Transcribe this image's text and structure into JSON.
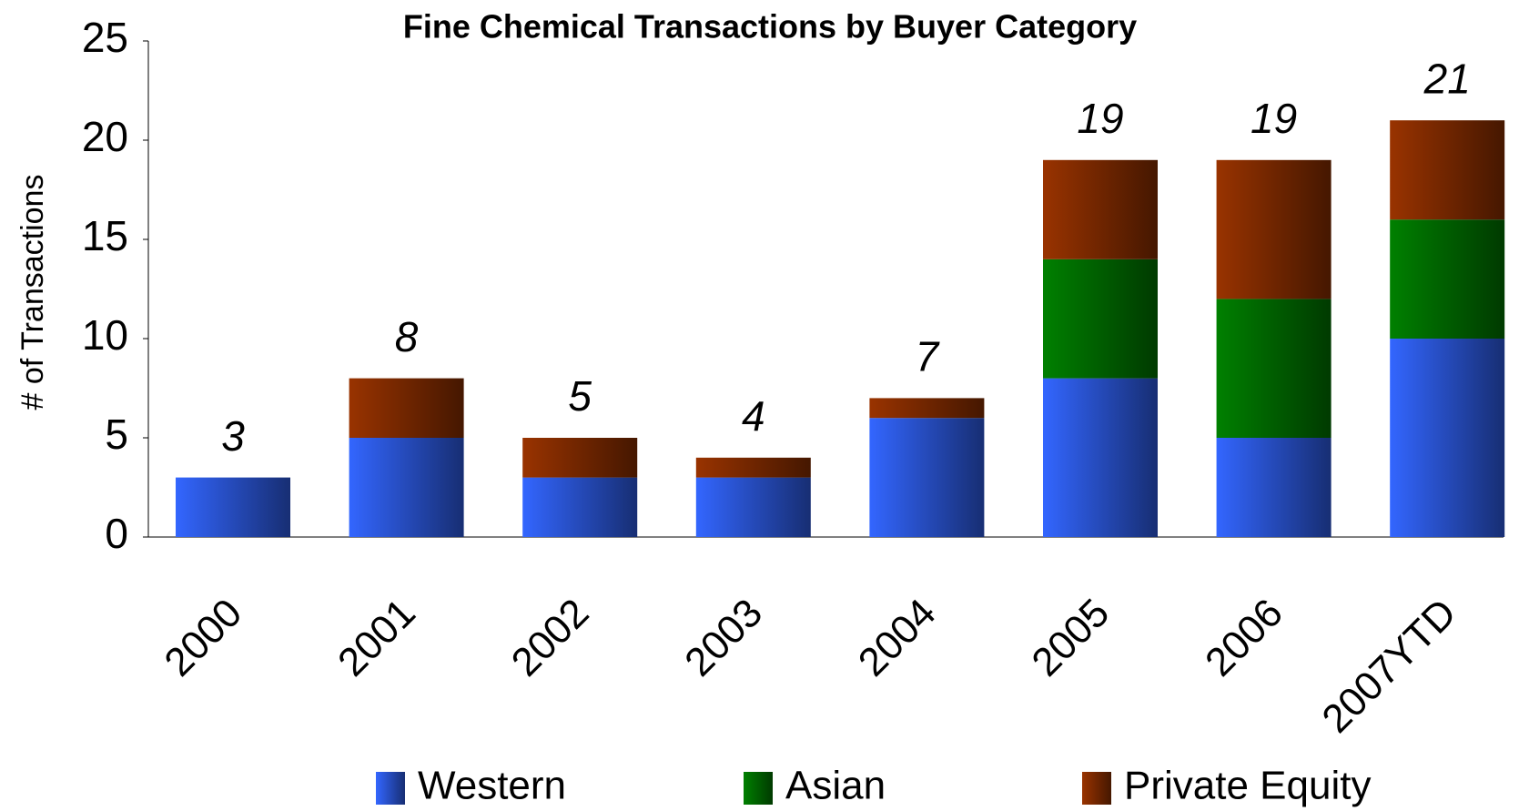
{
  "chart_data": {
    "type": "stacked_bar",
    "title": "Fine Chemical Transactions by Buyer Category",
    "y_label": "# of Transactions",
    "categories": [
      "2000",
      "2001",
      "2002",
      "2003",
      "2004",
      "2005",
      "2006",
      "2007YTD"
    ],
    "series": [
      {
        "name": "Western",
        "color": "#3366ff",
        "values": [
          3,
          5,
          3,
          3,
          6,
          8,
          5,
          10
        ]
      },
      {
        "name": "Asian",
        "color": "#008000",
        "values": [
          0,
          0,
          0,
          0,
          0,
          6,
          7,
          6
        ]
      },
      {
        "name": "Private Equity",
        "color": "#993300",
        "values": [
          0,
          3,
          2,
          1,
          1,
          5,
          7,
          5
        ]
      }
    ],
    "totals": [
      3,
      8,
      5,
      4,
      7,
      19,
      19,
      21
    ],
    "ylim": [
      0,
      25
    ],
    "yticks": [
      0,
      5,
      10,
      15,
      20,
      25
    ],
    "grid": false,
    "legend": "bottom"
  }
}
